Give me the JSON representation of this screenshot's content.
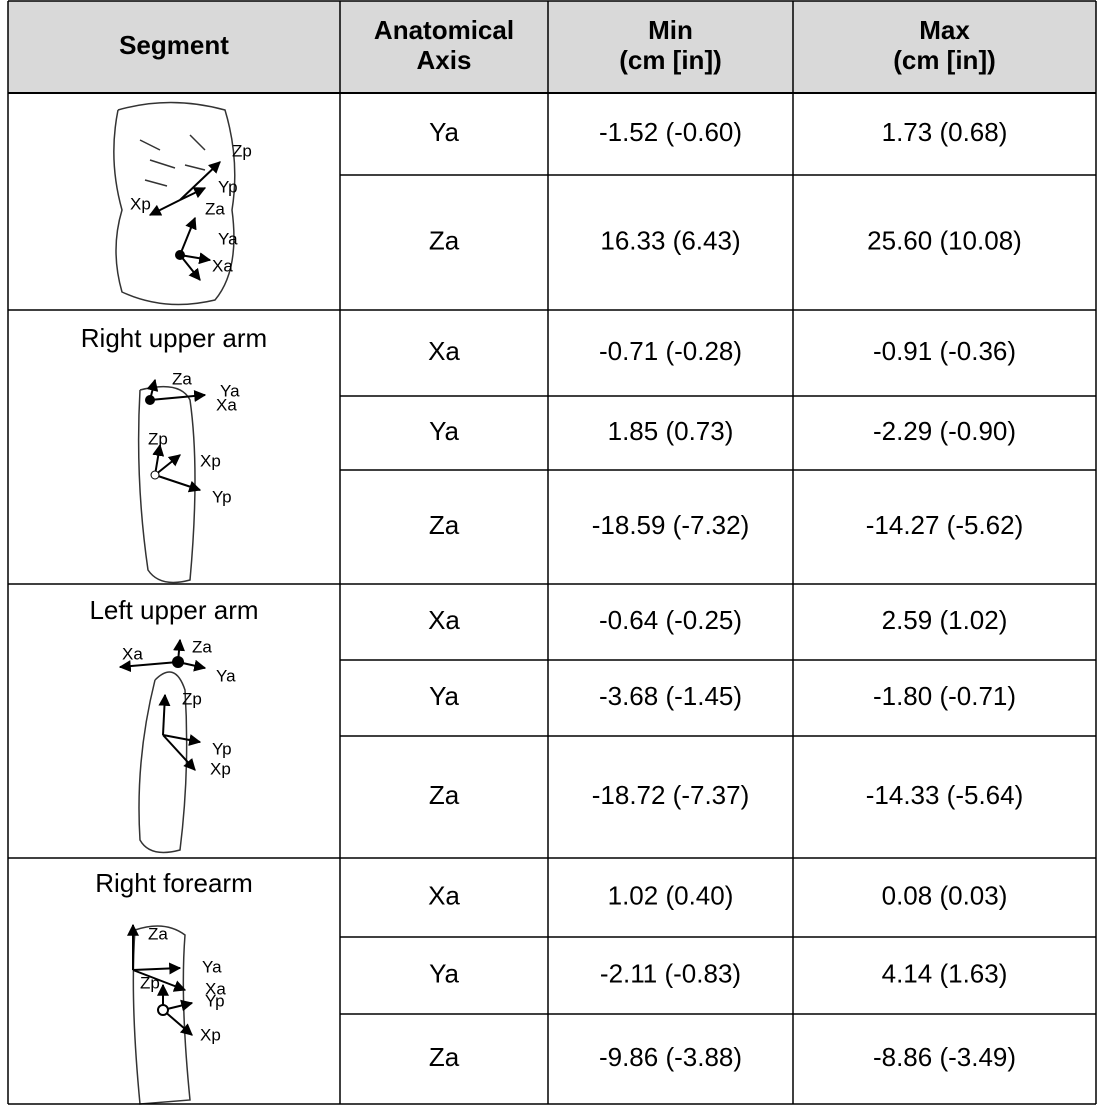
{
  "table": {
    "header": [
      [
        "Segment"
      ],
      [
        "Anatomical",
        "Axis"
      ],
      [
        "Min",
        "(cm [in])"
      ],
      [
        "Max",
        "(cm [in])"
      ]
    ],
    "segments": [
      {
        "figure_labels": [
          "Zp",
          "Yp",
          "Xp",
          "Za",
          "Ya",
          "Xa"
        ],
        "rows": [
          [
            "Ya",
            "-1.52 (-0.60)",
            "1.73 (0.68)"
          ],
          [
            "Za",
            "16.33 (6.43)",
            "25.60 (10.08)"
          ]
        ]
      },
      {
        "name": "Right upper arm",
        "figure_labels": [
          "Za",
          "Ya",
          "Xa",
          "Zp",
          "Xp",
          "Yp"
        ],
        "rows": [
          [
            "Xa",
            "-0.71 (-0.28)",
            "-0.91 (-0.36)"
          ],
          [
            "Ya",
            "1.85 (0.73)",
            "-2.29 (-0.90)"
          ],
          [
            "Za",
            "-18.59 (-7.32)",
            "-14.27 (-5.62)"
          ]
        ]
      },
      {
        "name": "Left upper arm",
        "figure_labels": [
          "Xa",
          "Za",
          "Ya",
          "Zp",
          "Yp",
          "Xp"
        ],
        "rows": [
          [
            "Xa",
            "-0.64 (-0.25)",
            "2.59 (1.02)"
          ],
          [
            "Ya",
            "-3.68 (-1.45)",
            "-1.80 (-0.71)"
          ],
          [
            "Za",
            "-18.72 (-7.37)",
            "-14.33 (-5.64)"
          ]
        ]
      },
      {
        "name": "Right forearm",
        "figure_labels": [
          "Za",
          "Ya",
          "Zp",
          "Xa",
          "Yp",
          "Xp"
        ],
        "rows": [
          [
            "Xa",
            "1.02 (0.40)",
            "0.08 (0.03)"
          ],
          [
            "Ya",
            "-2.11 (-0.83)",
            "4.14 (1.63)"
          ],
          [
            "Za",
            "-9.86 (-3.88)",
            "-8.86 (-3.49)"
          ]
        ]
      }
    ]
  }
}
